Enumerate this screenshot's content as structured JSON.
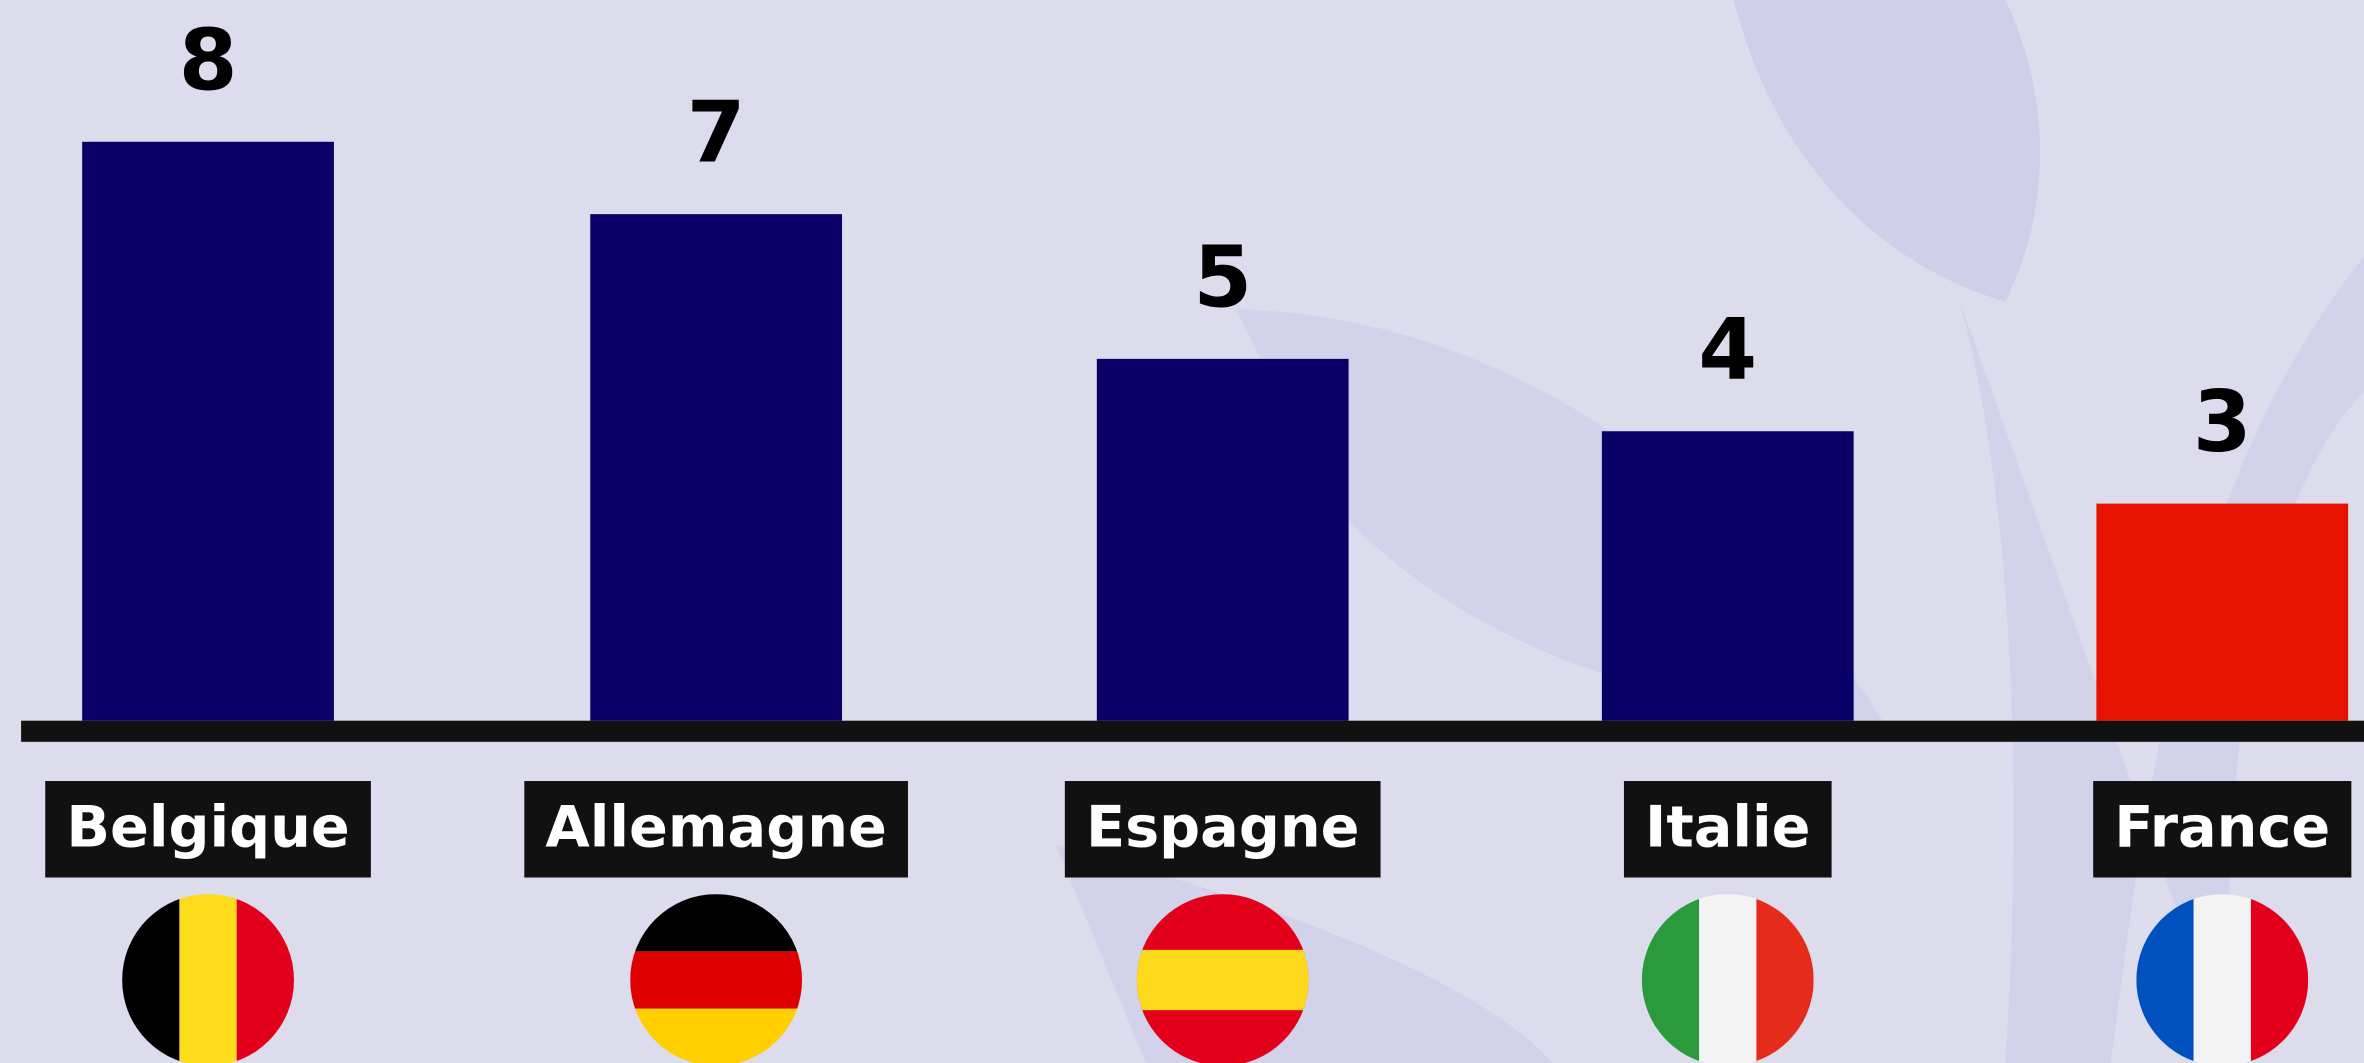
{
  "chart_data": {
    "type": "bar",
    "categories": [
      "Belgique",
      "Allemagne",
      "Espagne",
      "Italie",
      "France"
    ],
    "values": [
      8,
      7,
      5,
      4,
      3
    ],
    "colors": [
      "#0b0068",
      "#0b0068",
      "#0b0068",
      "#0b0068",
      "#e61300"
    ]
  }
}
